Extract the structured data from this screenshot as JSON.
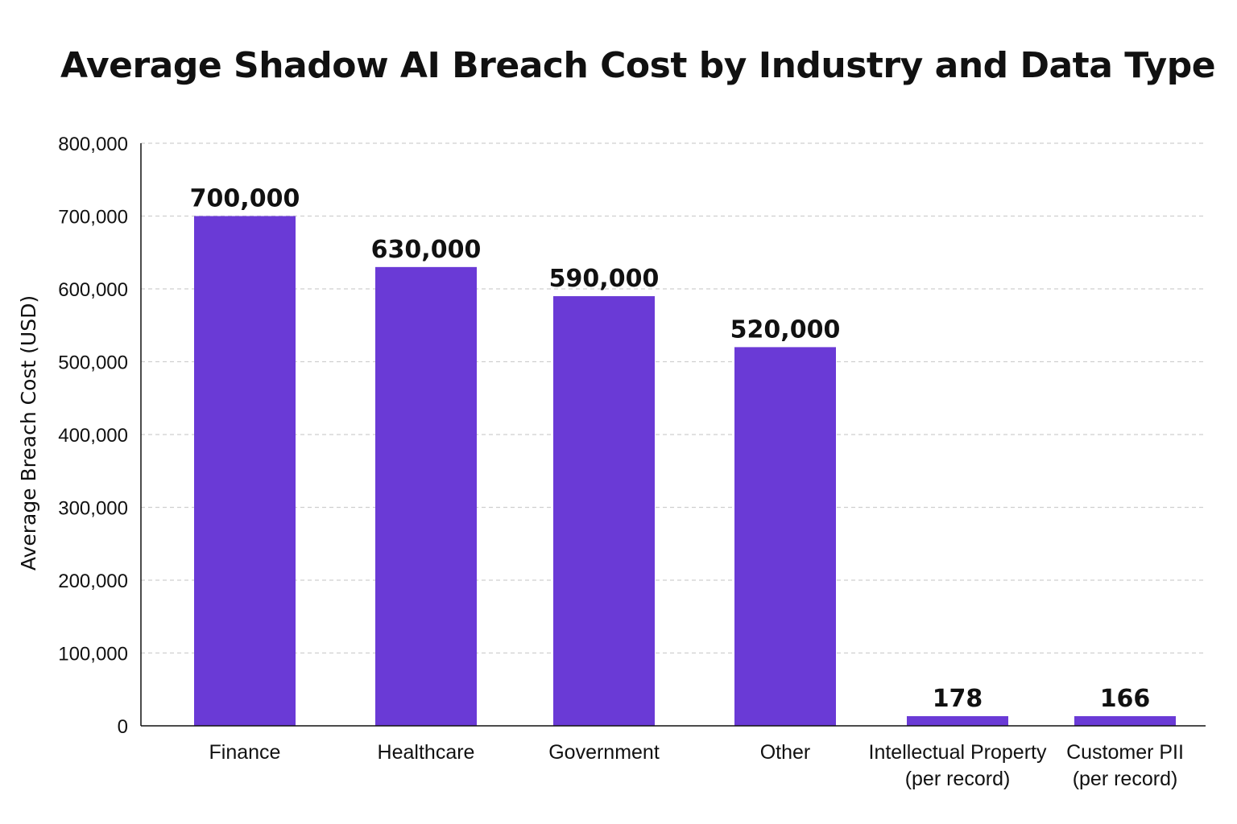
{
  "chart_data": {
    "type": "bar",
    "title": "Average Shadow AI Breach Cost by Industry and Data Type",
    "xlabel": "",
    "ylabel": "Average Breach Cost (USD)",
    "ylim": [
      0,
      800000
    ],
    "yticks": [
      0,
      100000,
      200000,
      300000,
      400000,
      500000,
      600000,
      700000,
      800000
    ],
    "ytick_labels": [
      "0",
      "100,000",
      "200,000",
      "300,000",
      "400,000",
      "500,000",
      "600,000",
      "700,000",
      "800,000"
    ],
    "grid": true,
    "categories": [
      [
        "Finance"
      ],
      [
        "Healthcare"
      ],
      [
        "Government"
      ],
      [
        "Other"
      ],
      [
        "Intellectual Property",
        "(per record)"
      ],
      [
        "Customer PII",
        "(per record)"
      ]
    ],
    "values": [
      700000,
      630000,
      590000,
      520000,
      178,
      166
    ],
    "data_labels": [
      "700,000",
      "630,000",
      "590,000",
      "520,000",
      "178",
      "166"
    ],
    "bar_color": "#6a3ad6",
    "grid_color": "#cfcfcf",
    "axis_color": "#111111"
  }
}
